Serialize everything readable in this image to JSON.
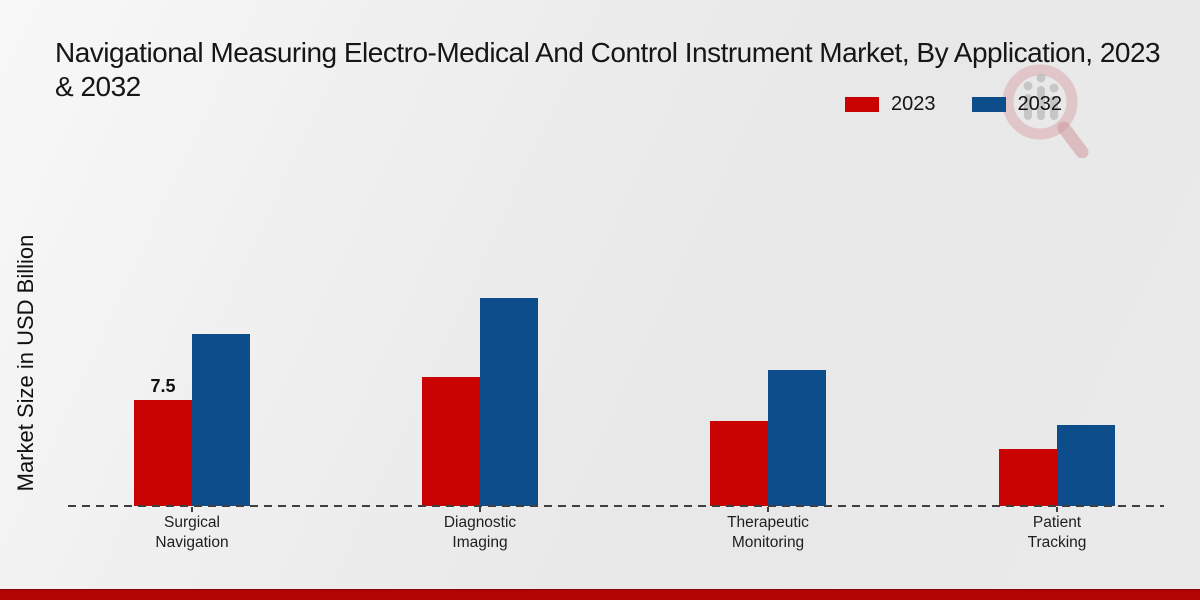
{
  "title": "Navigational Measuring Electro-Medical And Control Instrument Market, By Application, 2023 & 2032",
  "ylabel": "Market Size in USD Billion",
  "legend": {
    "items": [
      {
        "label": "2023",
        "color": "#C90301"
      },
      {
        "label": "2032",
        "color": "#0E4D8C"
      }
    ]
  },
  "footer": {
    "strip_color": "#B30404"
  },
  "colors": {
    "series_2023": "#C90301",
    "series_2032": "#0E4D8C",
    "baseline": "#3F3F3F",
    "background": "#ECECEC"
  },
  "watermark_icon": "magnifier-bar-chart-logo",
  "chart_data": {
    "type": "bar",
    "title": "Navigational Measuring Electro-Medical And Control Instrument Market, By Application, 2023 & 2032",
    "categories": [
      "Surgical Navigation",
      "Diagnostic Imaging",
      "Therapeutic Monitoring",
      "Patient Tracking"
    ],
    "series": [
      {
        "name": "2023",
        "color": "#C90301",
        "values": [
          7.5,
          9.1,
          6.0,
          4.0
        ]
      },
      {
        "name": "2032",
        "color": "#0E4D8C",
        "values": [
          12.2,
          14.7,
          9.6,
          5.7
        ]
      }
    ],
    "data_labels": [
      {
        "series_index": 0,
        "category_index": 0,
        "text": "7.5"
      }
    ],
    "xlabel": "",
    "ylabel": "Market Size in USD Billion",
    "ylim": [
      0,
      16
    ],
    "grid": false,
    "y_axis_ticks_visible": false,
    "legend_position": "top-right",
    "baseline_style": "dashed"
  }
}
